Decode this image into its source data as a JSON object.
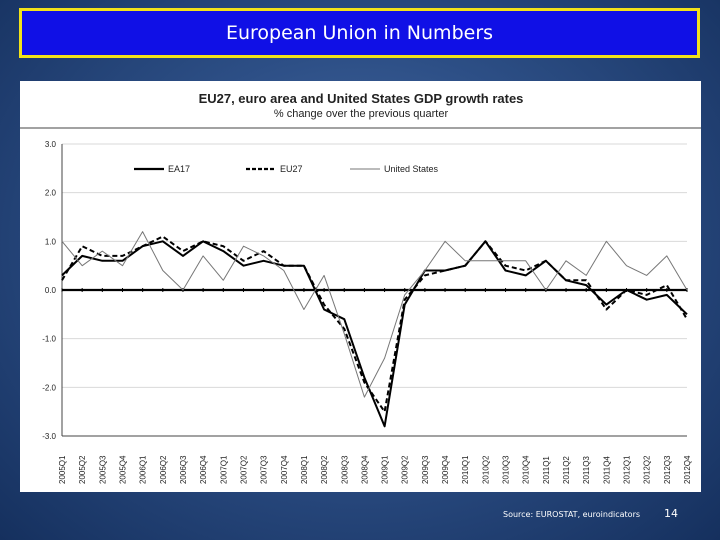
{
  "slide": {
    "title": "European Union in Numbers",
    "source": "Source: EUROSTAT, euroindicators",
    "page_number": "14",
    "colors": {
      "background": "#2d4f86",
      "title_fill": "#1010e6",
      "title_border": "#f2e21a",
      "text": "#ffffff"
    }
  },
  "chart_data": {
    "type": "line",
    "title": "EU27, euro area and United States GDP growth rates",
    "subtitle": "% change over the previous quarter",
    "xlabel": "",
    "ylabel": "",
    "ylim": [
      -3.0,
      3.0
    ],
    "yticks": [
      "3.0",
      "2.0",
      "1.0",
      "0.0",
      "-1.0",
      "-2.0",
      "-3.0"
    ],
    "ytick_values": [
      3,
      2,
      1,
      0,
      -1,
      -2,
      -3
    ],
    "grid": "horizontal",
    "legend": "top-left",
    "categories": [
      "2005Q1",
      "2005Q2",
      "2005Q3",
      "2005Q4",
      "2006Q1",
      "2006Q2",
      "2006Q3",
      "2006Q4",
      "2007Q1",
      "2007Q2",
      "2007Q3",
      "2007Q4",
      "2008Q1",
      "2008Q2",
      "2008Q3",
      "2008Q4",
      "2009Q1",
      "2009Q2",
      "2009Q3",
      "2009Q4",
      "2010Q1",
      "2010Q2",
      "2010Q3",
      "2010Q4",
      "2011Q1",
      "2011Q2",
      "2011Q3",
      "2011Q4",
      "2012Q1",
      "2012Q2",
      "2012Q3",
      "2012Q4"
    ],
    "tick_labels": [
      "2005Q1",
      "2005Q2",
      "2005Q3",
      "2005Q4",
      "2006Q1",
      "2006Q2",
      "2006Q3",
      "2006Q4",
      "2007Q1",
      "2007Q2",
      "2007Q3",
      "2007Q4",
      "2008Q1",
      "2008Q2",
      "2008Q3",
      "2008Q4",
      "2009Q1",
      "2009Q2",
      "2009Q3",
      "2009Q4",
      "2010Q1",
      "2010Q2",
      "2010Q3",
      "2010Q4",
      "2011Q1",
      "2011Q2",
      "2011Q3",
      "2011Q4",
      "2012Q1",
      "2012Q2",
      "2012Q3",
      "2012Q4"
    ],
    "series": [
      {
        "name": "EA17",
        "color": "#000000",
        "style": "solid",
        "values": [
          0.3,
          0.7,
          0.6,
          0.6,
          0.9,
          1.0,
          0.7,
          1.0,
          0.8,
          0.5,
          0.6,
          0.5,
          0.5,
          -0.4,
          -0.6,
          -1.8,
          -2.8,
          -0.3,
          0.4,
          0.4,
          0.5,
          1.0,
          0.4,
          0.3,
          0.6,
          0.2,
          0.1,
          -0.3,
          0.0,
          -0.2,
          -0.1,
          -0.5
        ]
      },
      {
        "name": "EU27",
        "color": "#000000",
        "style": "dashed",
        "values": [
          0.2,
          0.9,
          0.7,
          0.7,
          0.9,
          1.1,
          0.8,
          1.0,
          0.9,
          0.6,
          0.8,
          0.5,
          0.5,
          -0.3,
          -0.8,
          -1.9,
          -2.5,
          -0.2,
          0.3,
          0.4,
          0.5,
          1.0,
          0.5,
          0.4,
          0.6,
          0.2,
          0.2,
          -0.4,
          0.0,
          -0.1,
          0.1,
          -0.6
        ]
      },
      {
        "name": "United States",
        "color": "#777777",
        "style": "solid",
        "values": [
          1.0,
          0.5,
          0.8,
          0.5,
          1.2,
          0.4,
          0.0,
          0.7,
          0.2,
          0.9,
          0.7,
          0.4,
          -0.4,
          0.3,
          -0.9,
          -2.2,
          -1.4,
          -0.1,
          0.4,
          1.0,
          0.6,
          0.6,
          0.6,
          0.6,
          0.0,
          0.6,
          0.3,
          1.0,
          0.5,
          0.3,
          0.7,
          0.0
        ]
      }
    ]
  }
}
